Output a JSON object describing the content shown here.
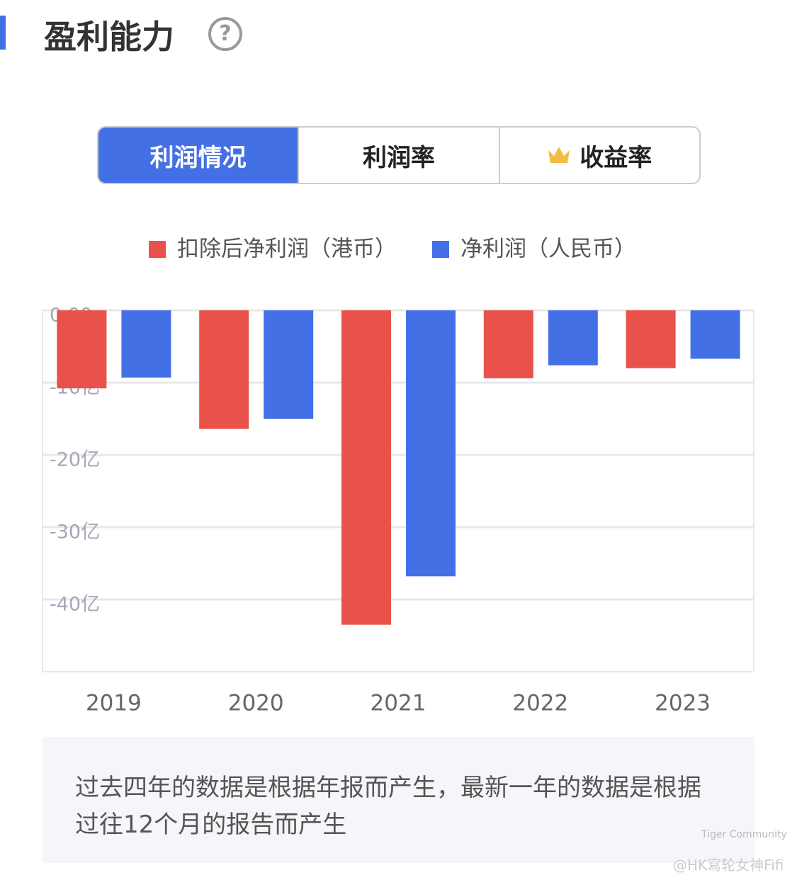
{
  "header": {
    "title": "盈利能力"
  },
  "tabs": [
    "利润情况",
    "利润率",
    "收益率"
  ],
  "chart_data": {
    "type": "bar",
    "categories": [
      "2019",
      "2020",
      "2021",
      "2022",
      "2023"
    ],
    "series": [
      {
        "name": "扣除后净利润（港币）",
        "color": "#e8524a",
        "values": [
          -10.8,
          -16.4,
          -43.5,
          -9.4,
          -8.0
        ]
      },
      {
        "name": "净利润（人民币）",
        "color": "#4470e6",
        "values": [
          -9.3,
          -15.0,
          -36.8,
          -7.6,
          -6.7
        ]
      }
    ],
    "ylim": [
      -50,
      0
    ],
    "yticks": [
      {
        "value": 0,
        "label": "0.00"
      },
      {
        "value": -10,
        "label": "-10亿"
      },
      {
        "value": -20,
        "label": "-20亿"
      },
      {
        "value": -30,
        "label": "-30亿"
      },
      {
        "value": -40,
        "label": "-40亿"
      }
    ],
    "grid": true
  },
  "note": "过去四年的数据是根据年报而产生，最新一年的数据是根据过往12个月的报告而产生",
  "watermark": {
    "brand": "Tiger Community",
    "user": "@HK寫轮女神Fifi"
  }
}
